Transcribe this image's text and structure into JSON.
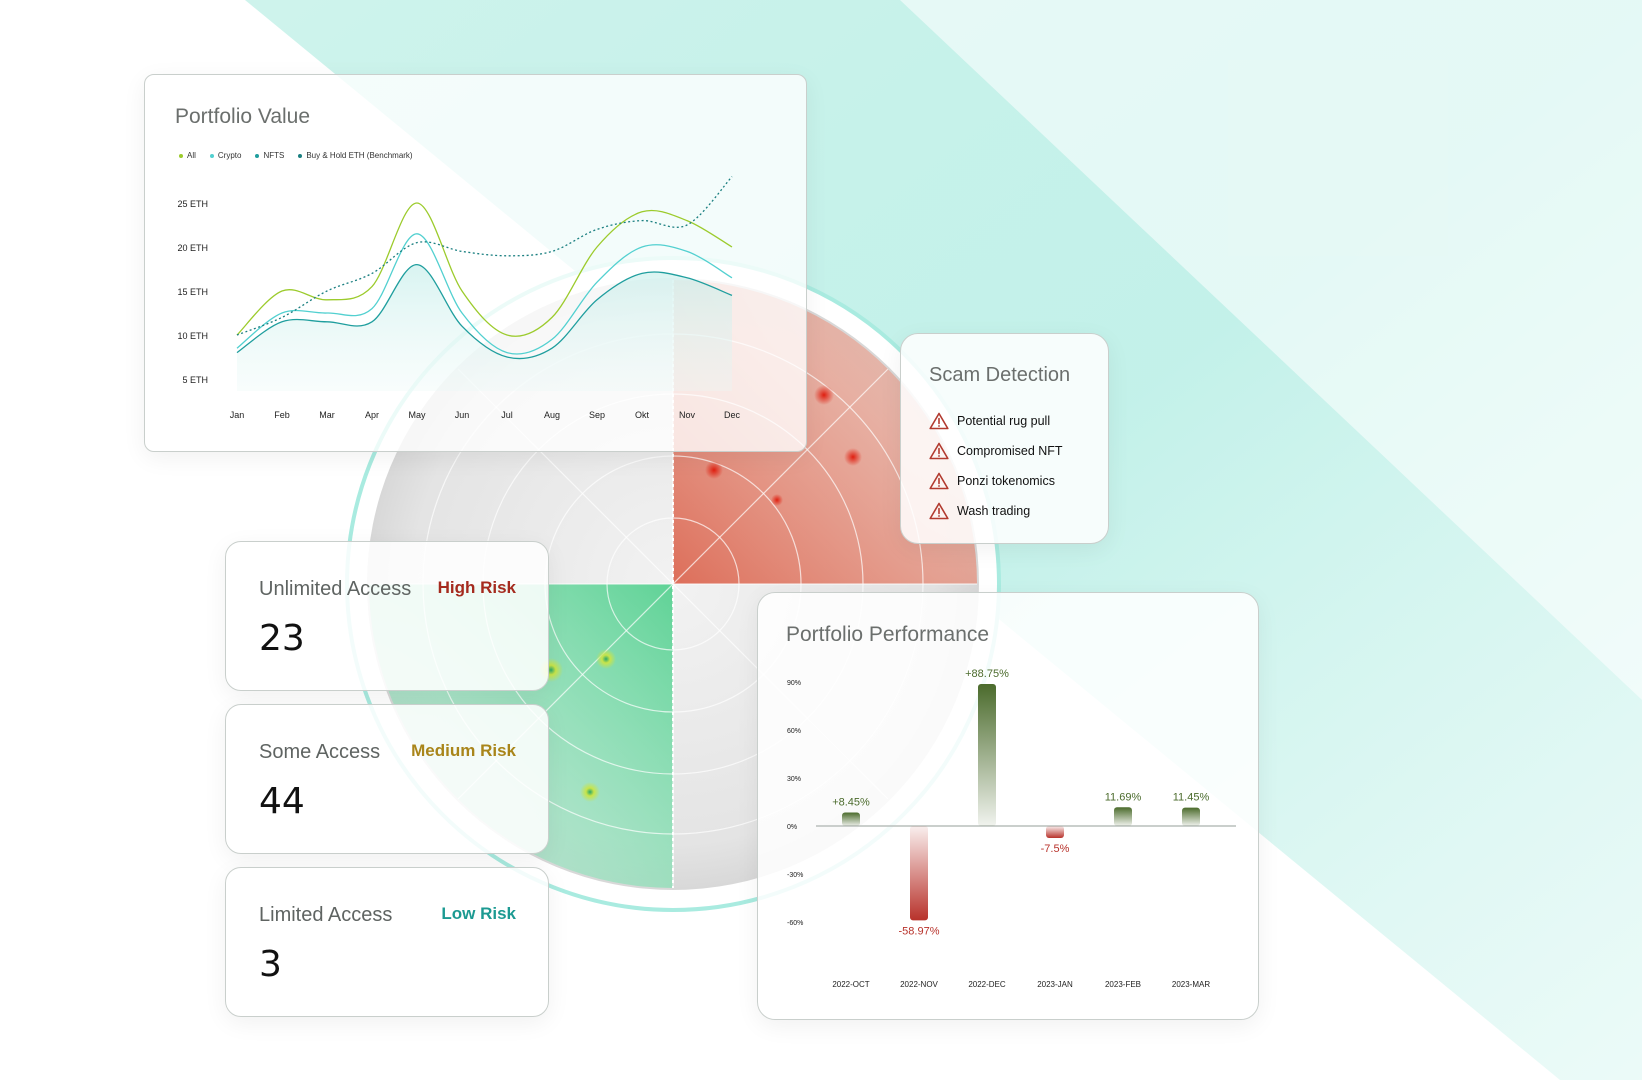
{
  "portfolio_value": {
    "title": "Portfolio Value",
    "legend": [
      {
        "label": "All",
        "color": "#9ccb2c"
      },
      {
        "label": "Crypto",
        "color": "#52d0d0"
      },
      {
        "label": "NFTS",
        "color": "#1f9e9e"
      },
      {
        "label": "Buy & Hold ETH (Benchmark)",
        "color": "#1a7f80"
      }
    ],
    "y_ticks": [
      "25 ETH",
      "20 ETH",
      "15 ETH",
      "10 ETH",
      "5 ETH"
    ],
    "x_ticks": [
      "Jan",
      "Feb",
      "Mar",
      "Apr",
      "May",
      "Jun",
      "Jul",
      "Aug",
      "Sep",
      "Okt",
      "Nov",
      "Dec"
    ]
  },
  "chart_data": [
    {
      "type": "line",
      "x": [
        "Jan",
        "Feb",
        "Mar",
        "Apr",
        "May",
        "Jun",
        "Jul",
        "Aug",
        "Sep",
        "Okt",
        "Nov",
        "Dec"
      ],
      "ylim": [
        5,
        25
      ],
      "series": [
        {
          "name": "All",
          "values": [
            10,
            15,
            14,
            15.5,
            25,
            15,
            10,
            12,
            20,
            24,
            23,
            20
          ],
          "color": "#9ccb2c",
          "style": "solid"
        },
        {
          "name": "Crypto",
          "values": [
            8.5,
            12.5,
            12.5,
            13,
            21.5,
            12.5,
            8,
            9.5,
            16,
            20,
            19.5,
            16.5
          ],
          "color": "#52d0d0",
          "style": "solid"
        },
        {
          "name": "NFTS",
          "values": [
            8,
            11.5,
            11.5,
            11.5,
            18,
            11,
            7.5,
            8.5,
            14,
            17,
            16.5,
            14.5
          ],
          "color": "#1f9e9e",
          "style": "solid"
        },
        {
          "name": "Buy & Hold ETH (Benchmark)",
          "values": [
            10,
            12,
            15,
            17,
            20.5,
            19.5,
            19,
            19.5,
            22,
            23,
            22.5,
            28
          ],
          "color": "#1a7f80",
          "style": "dashed"
        }
      ]
    },
    {
      "type": "bar",
      "title": "Portfolio Performance",
      "categories": [
        "2022-OCT",
        "2022-NOV",
        "2022-DEC",
        "2023-JAN",
        "2023-FEB",
        "2023-MAR"
      ],
      "values": [
        8.45,
        -58.97,
        88.75,
        -7.5,
        11.69,
        11.45
      ],
      "labels": [
        "+8.45%",
        "-58.97%",
        "+88.75%",
        "-7.5%",
        "11.69%",
        "11.45%"
      ],
      "y_ticks": [
        "90%",
        "60%",
        "30%",
        "0%",
        "-30%",
        "-60%"
      ],
      "ylim": [
        -60,
        90
      ],
      "colors": {
        "positive": "#4b6b2c",
        "negative": "#b8322b"
      }
    }
  ],
  "scam_detection": {
    "title": "Scam Detection",
    "items": [
      {
        "label": "Potential rug pull",
        "icon": "warning-icon"
      },
      {
        "label": "Compromised NFT",
        "icon": "warning-icon"
      },
      {
        "label": "Ponzi tokenomics",
        "icon": "warning-icon"
      },
      {
        "label": "Wash trading",
        "icon": "warning-icon"
      }
    ],
    "icon_color": "#b23a2f"
  },
  "access_cards": [
    {
      "label": "Unlimited Access",
      "risk": "High Risk",
      "count": "23",
      "risk_color": "#a52a1e"
    },
    {
      "label": "Some Access",
      "risk": "Medium Risk",
      "count": "44",
      "risk_color": "#a9851a"
    },
    {
      "label": "Limited Access",
      "risk": "Low Risk",
      "count": "3",
      "risk_color": "#1c9a92"
    }
  ],
  "performance": {
    "title": "Portfolio Performance"
  }
}
